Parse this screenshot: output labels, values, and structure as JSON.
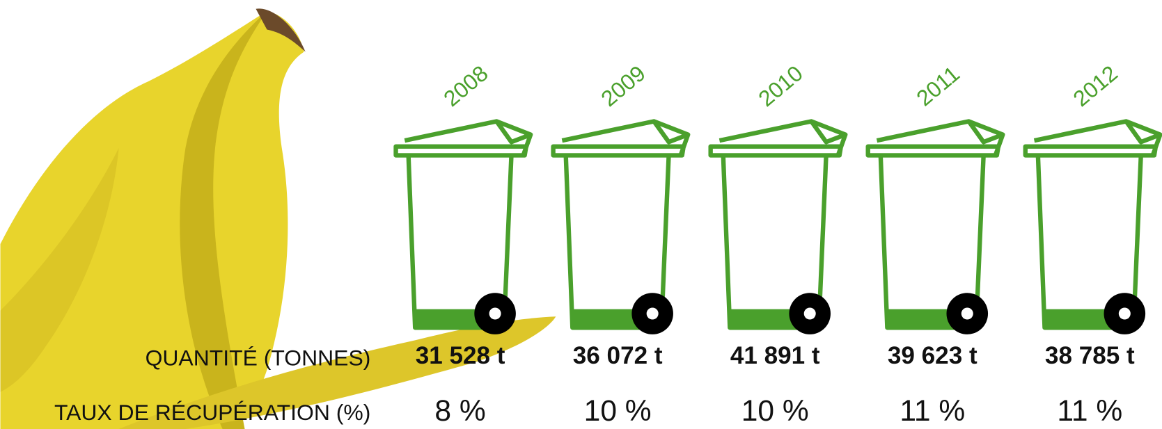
{
  "row_labels": {
    "quantity": "QUANTITÉ (TONNES)",
    "rate": "TAUX DE RÉCUPÉRATION (%)"
  },
  "items": [
    {
      "year": "2008",
      "quantity": "31 528 t",
      "rate": "8 %"
    },
    {
      "year": "2009",
      "quantity": "36 072 t",
      "rate": "10 %"
    },
    {
      "year": "2010",
      "quantity": "41 891 t",
      "rate": "10 %"
    },
    {
      "year": "2011",
      "quantity": "39 623 t",
      "rate": "11 %"
    },
    {
      "year": "2012",
      "quantity": "38 785 t",
      "rate": "11 %"
    }
  ]
}
